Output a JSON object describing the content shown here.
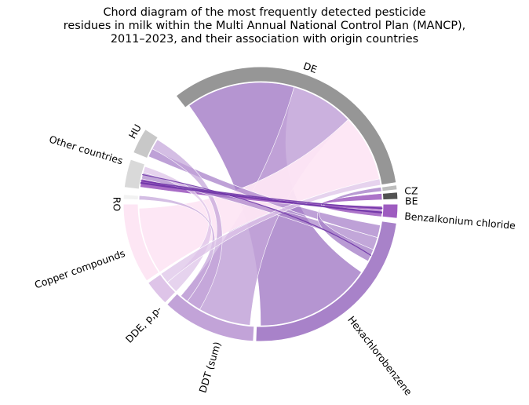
{
  "title_lines": [
    "Chord diagram of the most frequently detected pesticide",
    "residues in milk within the Multi Annual National Control Plan (MANCP),",
    "2011–2023, and their association with origin countries"
  ],
  "nodes": [
    {
      "id": "DE",
      "label": "DE",
      "group": "country",
      "color": "#969696"
    },
    {
      "id": "CZ",
      "label": "CZ",
      "group": "country",
      "color": "#bdbdbd"
    },
    {
      "id": "BE",
      "label": "BE",
      "group": "country",
      "color": "#525252"
    },
    {
      "id": "BAC",
      "label": "Benzalkonium chloride",
      "group": "pesticide",
      "color": "#9e5cc0"
    },
    {
      "id": "HCB",
      "label": "Hexachlorobenzene",
      "group": "pesticide",
      "color": "#a882c9"
    },
    {
      "id": "DDT",
      "label": "DDT (sum)",
      "group": "pesticide",
      "color": "#c2a3d8"
    },
    {
      "id": "DDE",
      "label": "DDE, p,p-",
      "group": "pesticide",
      "color": "#dec4e8"
    },
    {
      "id": "CU",
      "label": "Copper compounds",
      "group": "pesticide",
      "color": "#fde6f4"
    },
    {
      "id": "RO",
      "label": "RO",
      "group": "country",
      "color": "#f2f2f2"
    },
    {
      "id": "OTH",
      "label": "Other countries",
      "group": "country",
      "color": "#d9d9d9"
    },
    {
      "id": "HU",
      "label": "HU",
      "group": "country",
      "color": "#c8c8c8"
    }
  ]
}
